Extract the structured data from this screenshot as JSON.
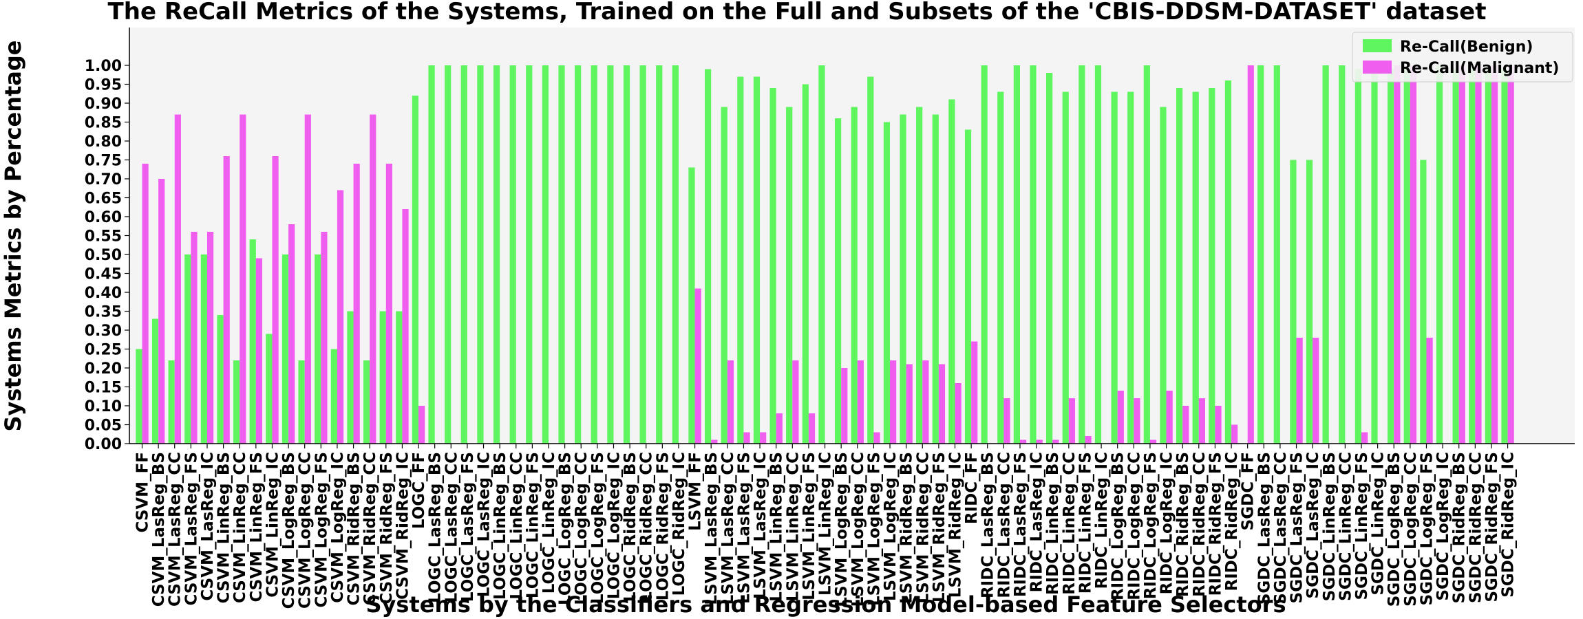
{
  "chart_data": {
    "type": "bar",
    "title": "The ReCall Metrics of the Systems, Trained on the Full and Subsets of the 'CBIS-DDSM-DATASET' dataset",
    "xlabel": "Systems by the Classifiers and Regression Model-based Feature Selectors",
    "ylabel": "Systems Metrics by Percentage",
    "ylim": [
      0,
      1.1
    ],
    "yticks": [
      "0.00",
      "0.05",
      "0.10",
      "0.15",
      "0.20",
      "0.25",
      "0.30",
      "0.35",
      "0.40",
      "0.45",
      "0.50",
      "0.55",
      "0.60",
      "0.65",
      "0.70",
      "0.75",
      "0.80",
      "0.85",
      "0.90",
      "0.95",
      "1.00"
    ],
    "grid": false,
    "legend_position": "top-right",
    "categories": [
      "CSVM_FF",
      "CSVM_LasReg_BS",
      "CSVM_LasReg_CC",
      "CSVM_LasReg_FS",
      "CSVM_LasReg_IC",
      "CSVM_LinReg_BS",
      "CSVM_LinReg_CC",
      "CSVM_LinReg_FS",
      "CSVM_LinReg_IC",
      "CSVM_LogReg_BS",
      "CSVM_LogReg_CC",
      "CSVM_LogReg_FS",
      "CSVM_LogReg_IC",
      "CSVM_RidReg_BS",
      "CSVM_RidReg_CC",
      "CSVM_RidReg_FS",
      "CSVM_RidReg_IC",
      "LOGC_FF",
      "LOGC_LasReg_BS",
      "LOGC_LasReg_CC",
      "LOGC_LasReg_FS",
      "LOGC_LasReg_IC",
      "LOGC_LinReg_BS",
      "LOGC_LinReg_CC",
      "LOGC_LinReg_FS",
      "LOGC_LinReg_IC",
      "LOGC_LogReg_BS",
      "LOGC_LogReg_CC",
      "LOGC_LogReg_FS",
      "LOGC_LogReg_IC",
      "LOGC_RidReg_BS",
      "LOGC_RidReg_CC",
      "LOGC_RidReg_FS",
      "LOGC_RidReg_IC",
      "LSVM_FF",
      "LSVM_LasReg_BS",
      "LSVM_LasReg_CC",
      "LSVM_LasReg_FS",
      "LSVM_LasReg_IC",
      "LSVM_LinReg_BS",
      "LSVM_LinReg_CC",
      "LSVM_LinReg_FS",
      "LSVM_LinReg_IC",
      "LSVM_LogReg_BS",
      "LSVM_LogReg_CC",
      "LSVM_LogReg_FS",
      "LSVM_LogReg_IC",
      "LSVM_RidReg_BS",
      "LSVM_RidReg_CC",
      "LSVM_RidReg_FS",
      "LSVM_RidReg_IC",
      "RIDC_FF",
      "RIDC_LasReg_BS",
      "RIDC_LasReg_CC",
      "RIDC_LasReg_FS",
      "RIDC_LasReg_IC",
      "RIDC_LinReg_BS",
      "RIDC_LinReg_CC",
      "RIDC_LinReg_FS",
      "RIDC_LinReg_IC",
      "RIDC_LogReg_BS",
      "RIDC_LogReg_CC",
      "RIDC_LogReg_FS",
      "RIDC_LogReg_IC",
      "RIDC_RidReg_BS",
      "RIDC_RidReg_CC",
      "RIDC_RidReg_FS",
      "RIDC_RidReg_IC",
      "SGDC_FF",
      "SGDC_LasReg_BS",
      "SGDC_LasReg_CC",
      "SGDC_LasReg_FS",
      "SGDC_LasReg_IC",
      "SGDC_LinReg_BS",
      "SGDC_LinReg_CC",
      "SGDC_LinReg_FS",
      "SGDC_LinReg_IC",
      "SGDC_LogReg_BS",
      "SGDC_LogReg_CC",
      "SGDC_LogReg_FS",
      "SGDC_LogReg_IC",
      "SGDC_RidReg_BS",
      "SGDC_RidReg_CC",
      "SGDC_RidReg_FS",
      "SGDC_RidReg_IC"
    ],
    "series": [
      {
        "name": "Re-Call(Benign)",
        "color": "#5ef55e",
        "values": [
          0.25,
          0.33,
          0.22,
          0.5,
          0.5,
          0.34,
          0.22,
          0.54,
          0.29,
          0.5,
          0.22,
          0.5,
          0.25,
          0.35,
          0.22,
          0.35,
          0.35,
          0.92,
          1.0,
          1.0,
          1.0,
          1.0,
          1.0,
          1.0,
          1.0,
          1.0,
          1.0,
          1.0,
          1.0,
          1.0,
          1.0,
          1.0,
          1.0,
          1.0,
          0.73,
          0.99,
          0.89,
          0.97,
          0.97,
          0.94,
          0.89,
          0.95,
          1.0,
          0.86,
          0.89,
          0.97,
          0.85,
          0.87,
          0.89,
          0.87,
          0.91,
          0.83,
          1.0,
          0.93,
          1.0,
          1.0,
          0.98,
          0.93,
          1.0,
          1.0,
          0.93,
          0.93,
          1.0,
          0.89,
          0.94,
          0.93,
          0.94,
          0.96,
          0.0,
          1.0,
          1.0,
          0.75,
          0.75,
          1.0,
          1.0,
          0.99,
          0.99,
          0.99,
          0.99,
          0.75,
          1.0,
          0.99,
          0.99,
          0.99,
          0.99
        ]
      },
      {
        "name": "Re-Call(Malignant)",
        "color": "#f05ef0",
        "values": [
          0.74,
          0.7,
          0.87,
          0.56,
          0.56,
          0.76,
          0.87,
          0.49,
          0.76,
          0.58,
          0.87,
          0.56,
          0.67,
          0.74,
          0.87,
          0.74,
          0.62,
          0.1,
          0.0,
          0.0,
          0.0,
          0.0,
          0.0,
          0.0,
          0.0,
          0.0,
          0.0,
          0.0,
          0.0,
          0.0,
          0.0,
          0.0,
          0.0,
          0.0,
          0.41,
          0.01,
          0.22,
          0.03,
          0.03,
          0.08,
          0.22,
          0.08,
          0.0,
          0.2,
          0.22,
          0.03,
          0.22,
          0.21,
          0.22,
          0.21,
          0.16,
          0.27,
          0.0,
          0.12,
          0.01,
          0.01,
          0.01,
          0.12,
          0.02,
          0.0,
          0.14,
          0.12,
          0.01,
          0.14,
          0.1,
          0.12,
          0.1,
          0.05,
          1.0,
          0.0,
          0.0,
          0.28,
          0.28,
          0.0,
          0.0,
          0.03,
          0.0,
          1.0,
          1.0,
          0.28,
          0.0,
          1.0,
          1.0,
          1.0,
          1.0
        ]
      }
    ]
  }
}
